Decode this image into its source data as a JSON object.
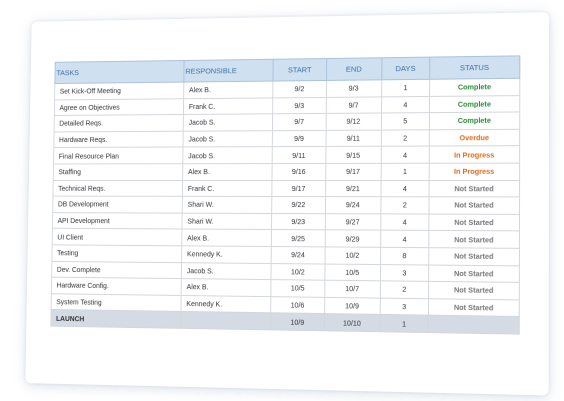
{
  "columns": {
    "tasks": "TASKS",
    "responsible": "RESPONSIBLE",
    "start": "START",
    "end": "END",
    "days": "DAYS",
    "status": "STATUS"
  },
  "colors": {
    "Complete": "#2e8a3a",
    "Overdue": "#e06a1b",
    "In Progress": "#e06a1b",
    "Not Started": "#777777",
    "header_bg": "#cfe0f0",
    "header_text": "#3f6fa6"
  },
  "rows": [
    {
      "task": "Set Kick-Off Meeting",
      "responsible": "Alex B.",
      "start": "9/2",
      "end": "9/3",
      "days": "1",
      "status": "Complete"
    },
    {
      "task": "Agree on Objectives",
      "responsible": "Frank C.",
      "start": "9/3",
      "end": "9/7",
      "days": "4",
      "status": "Complete"
    },
    {
      "task": "Detailed Reqs.",
      "responsible": "Jacob S.",
      "start": "9/7",
      "end": "9/12",
      "days": "5",
      "status": "Complete"
    },
    {
      "task": "Hardware Reqs.",
      "responsible": "Jacob S.",
      "start": "9/9",
      "end": "9/11",
      "days": "2",
      "status": "Overdue"
    },
    {
      "task": "Final Resource Plan",
      "responsible": "Jacob S.",
      "start": "9/11",
      "end": "9/15",
      "days": "4",
      "status": "In Progress"
    },
    {
      "task": "Staffing",
      "responsible": "Alex B.",
      "start": "9/16",
      "end": "9/17",
      "days": "1",
      "status": "In Progress"
    },
    {
      "task": "Technical Reqs.",
      "responsible": "Frank C.",
      "start": "9/17",
      "end": "9/21",
      "days": "4",
      "status": "Not Started"
    },
    {
      "task": "DB Development",
      "responsible": "Shari W.",
      "start": "9/22",
      "end": "9/24",
      "days": "2",
      "status": "Not Started"
    },
    {
      "task": "API Development",
      "responsible": "Shari W.",
      "start": "9/23",
      "end": "9/27",
      "days": "4",
      "status": "Not Started"
    },
    {
      "task": "UI Client",
      "responsible": "Alex B.",
      "start": "9/25",
      "end": "9/29",
      "days": "4",
      "status": "Not Started"
    },
    {
      "task": "Testing",
      "responsible": "Kennedy K.",
      "start": "9/24",
      "end": "10/2",
      "days": "8",
      "status": "Not Started"
    },
    {
      "task": "Dev. Complete",
      "responsible": "Jacob S.",
      "start": "10/2",
      "end": "10/5",
      "days": "3",
      "status": "Not Started"
    },
    {
      "task": "Hardware Config.",
      "responsible": "Alex B.",
      "start": "10/5",
      "end": "10/7",
      "days": "2",
      "status": "Not Started"
    },
    {
      "task": "System Testing",
      "responsible": "Kennedy K.",
      "start": "10/6",
      "end": "10/9",
      "days": "3",
      "status": "Not Started"
    }
  ],
  "launch": {
    "task": "LAUNCH",
    "responsible": "",
    "start": "10/9",
    "end": "10/10",
    "days": "1",
    "status": ""
  }
}
